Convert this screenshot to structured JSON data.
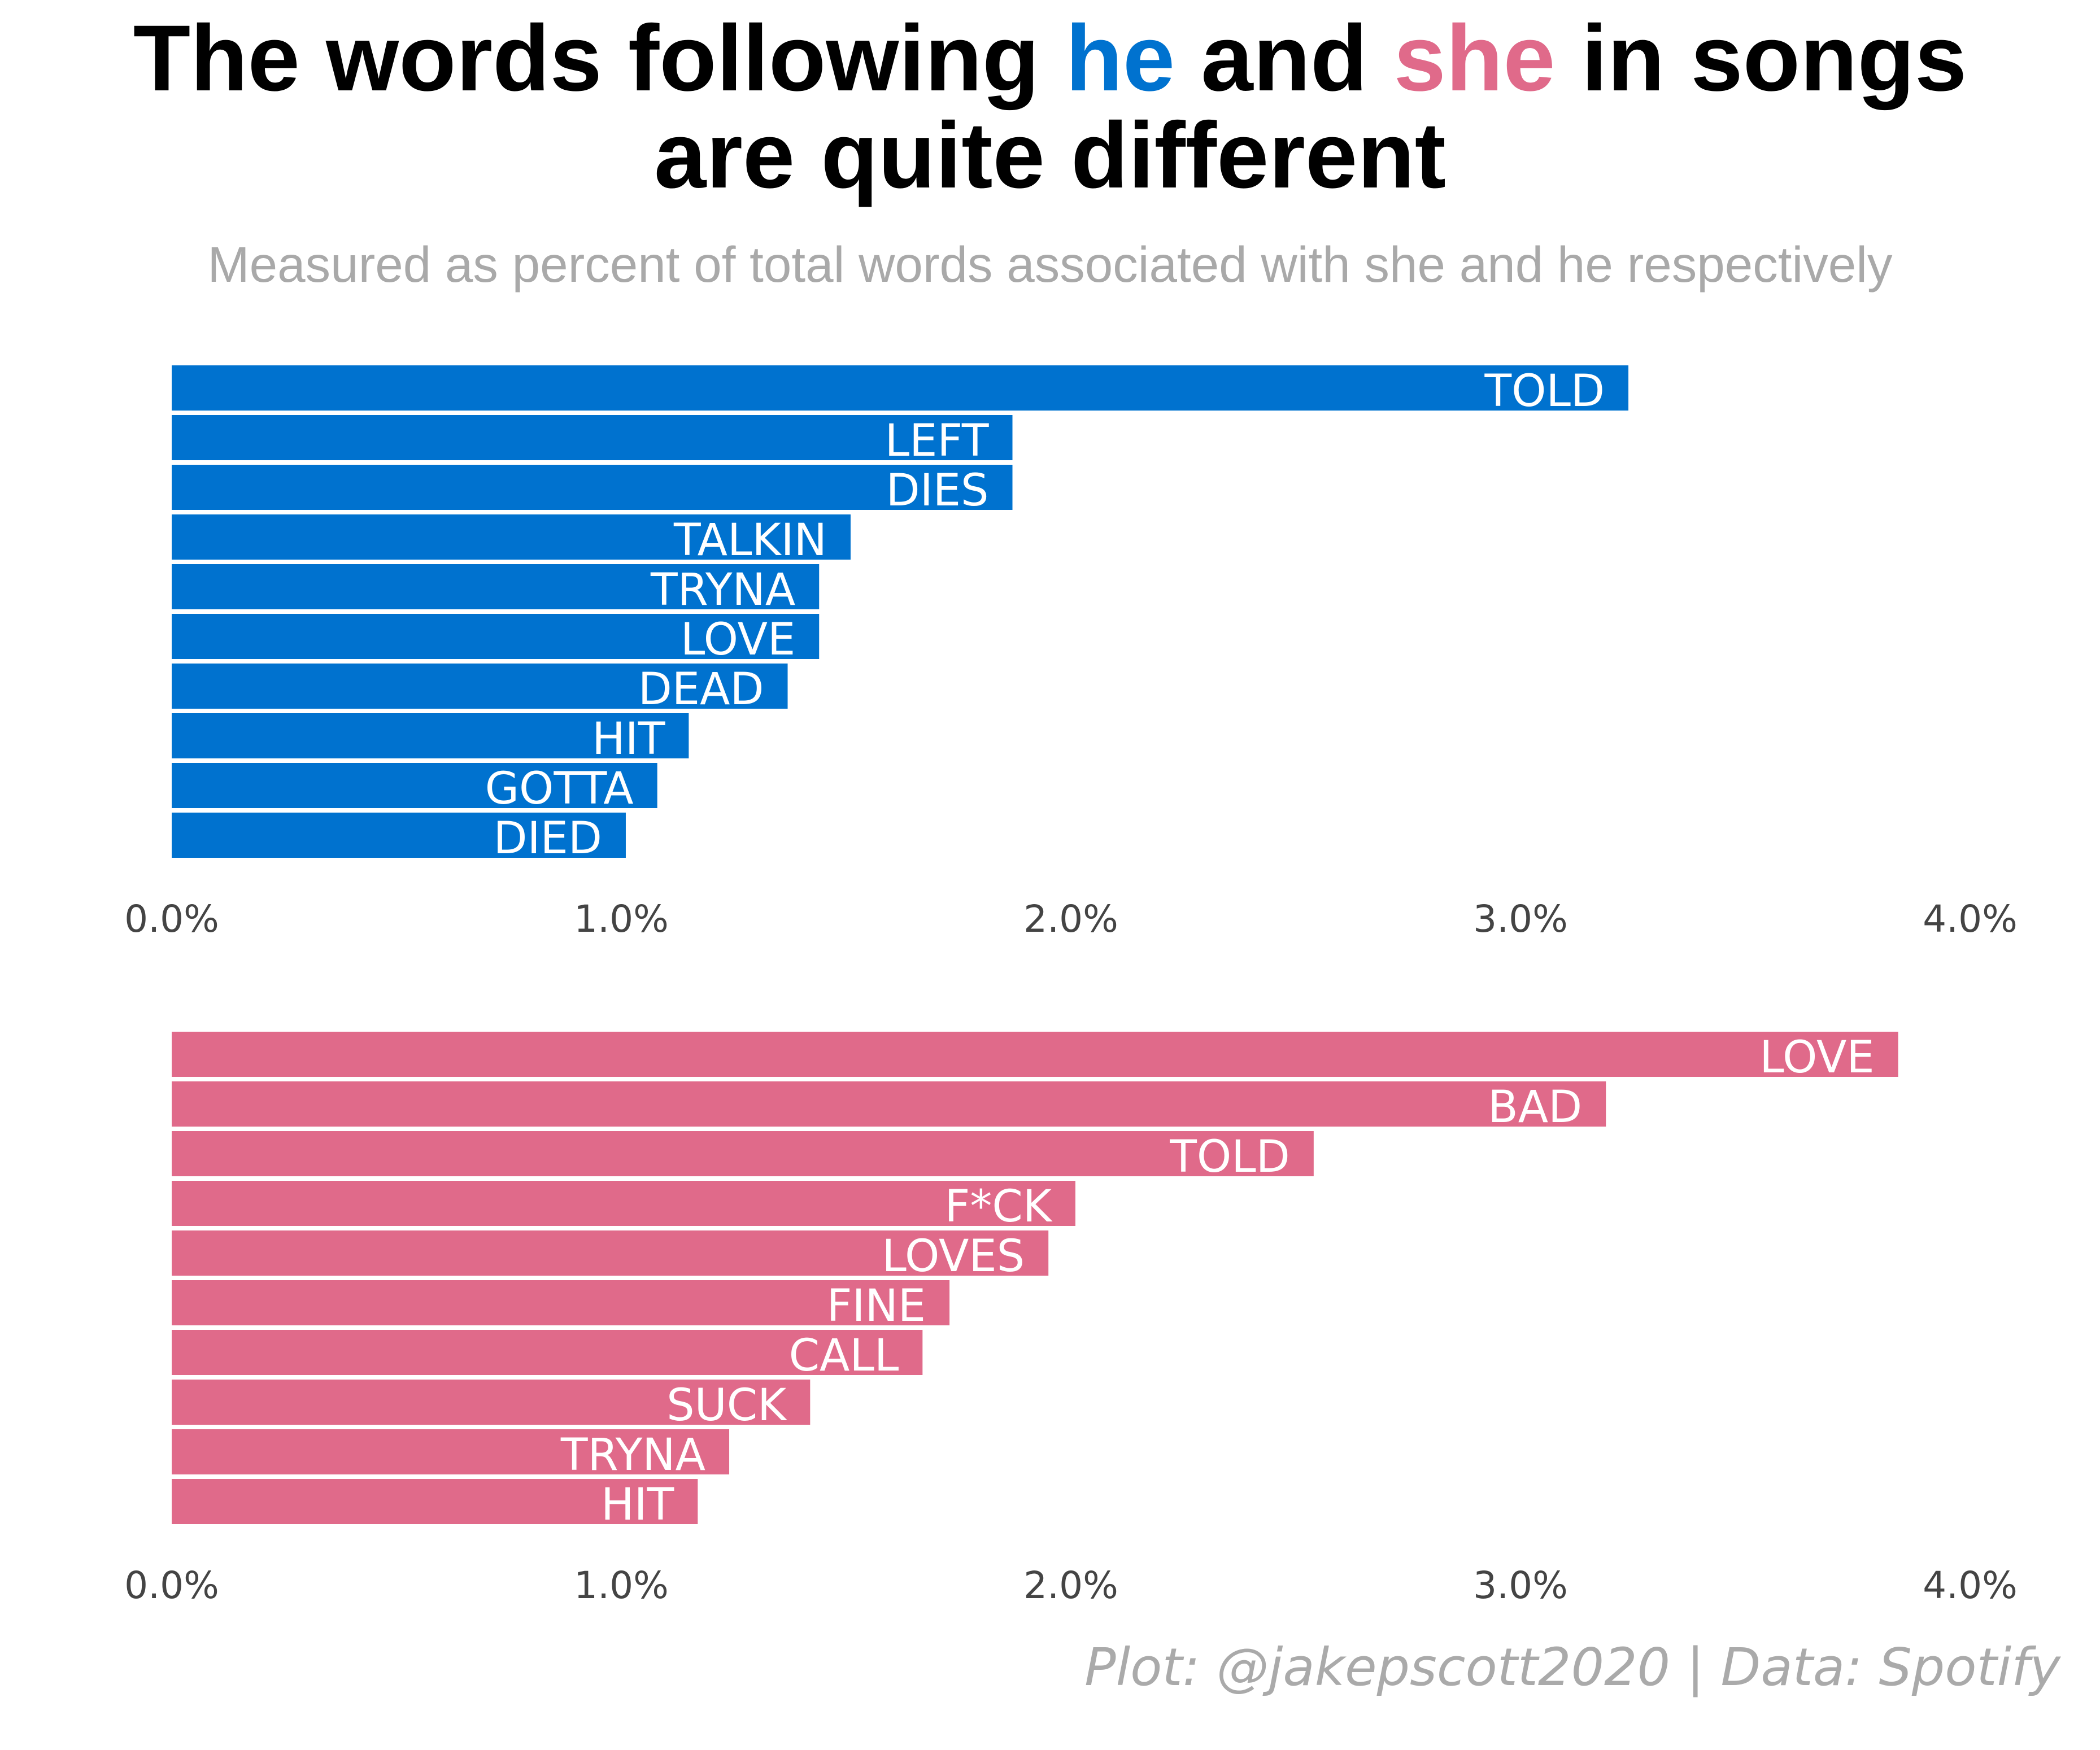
{
  "title": {
    "line1_a": "The words following ",
    "he": "he",
    "line1_b": " and ",
    "she": "she",
    "line1_c": " in songs",
    "line2": "are quite different"
  },
  "subtitle": "Measured as percent of total words associated with she and he respectively",
  "caption": "Plot: @jakepscott2020 | Data: Spotify",
  "colors": {
    "he": "#0072cf",
    "she": "#e06a8a",
    "title": "#000000",
    "subtitle": "#a9a9a9",
    "caption": "#aaaaaa",
    "tick": "#444444"
  },
  "chart_data": [
    {
      "type": "bar",
      "orientation": "horizontal",
      "categories": [
        "TOLD",
        "LEFT",
        "DIES",
        "TALKIN",
        "TRYNA",
        "LOVE",
        "DEAD",
        "HIT",
        "GOTTA",
        "DIED"
      ],
      "values": [
        3.24,
        1.87,
        1.87,
        1.51,
        1.44,
        1.44,
        1.37,
        1.15,
        1.08,
        1.01
      ],
      "xlim": [
        0,
        4
      ],
      "x_ticks": [
        "0.0%",
        "1.0%",
        "2.0%",
        "3.0%",
        "4.0%"
      ],
      "x_tick_values": [
        0,
        1,
        2,
        3,
        4
      ],
      "color": "#0072cf",
      "grid": false
    },
    {
      "type": "bar",
      "orientation": "horizontal",
      "categories": [
        "LOVE",
        "BAD",
        "TOLD",
        "F*CK",
        "LOVES",
        "FINE",
        "CALL",
        "SUCK",
        "TRYNA",
        "HIT"
      ],
      "values": [
        3.84,
        3.19,
        2.54,
        2.01,
        1.95,
        1.73,
        1.67,
        1.42,
        1.24,
        1.17
      ],
      "xlim": [
        0,
        4
      ],
      "x_ticks": [
        "0.0%",
        "1.0%",
        "2.0%",
        "3.0%",
        "4.0%"
      ],
      "x_tick_values": [
        0,
        1,
        2,
        3,
        4
      ],
      "color": "#e06a8a",
      "grid": false
    }
  ]
}
